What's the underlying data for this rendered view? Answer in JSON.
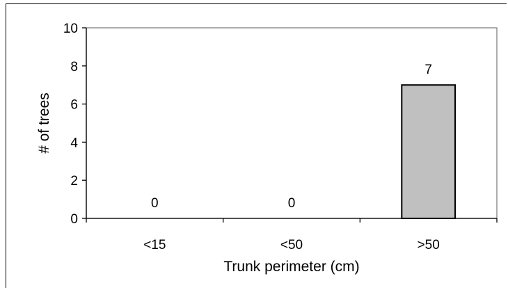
{
  "chart_data": {
    "type": "bar",
    "title": "",
    "xlabel": "Trunk perimeter (cm)",
    "ylabel": "# of trees",
    "categories": [
      "<15",
      "<50",
      ">50"
    ],
    "values": [
      0,
      0,
      7
    ],
    "data_labels": [
      "0",
      "0",
      "7"
    ],
    "ylim": [
      0,
      10
    ],
    "yticks": [
      0,
      2,
      4,
      6,
      8,
      10
    ],
    "ytick_labels": [
      "0",
      "2",
      "4",
      "6",
      "8",
      "10"
    ],
    "grid": false,
    "legend": "none",
    "colors": {
      "bar_fill": "#c0c0c0",
      "bar_stroke": "#000000",
      "plot_border": "#808080",
      "axis": "#000000"
    }
  }
}
